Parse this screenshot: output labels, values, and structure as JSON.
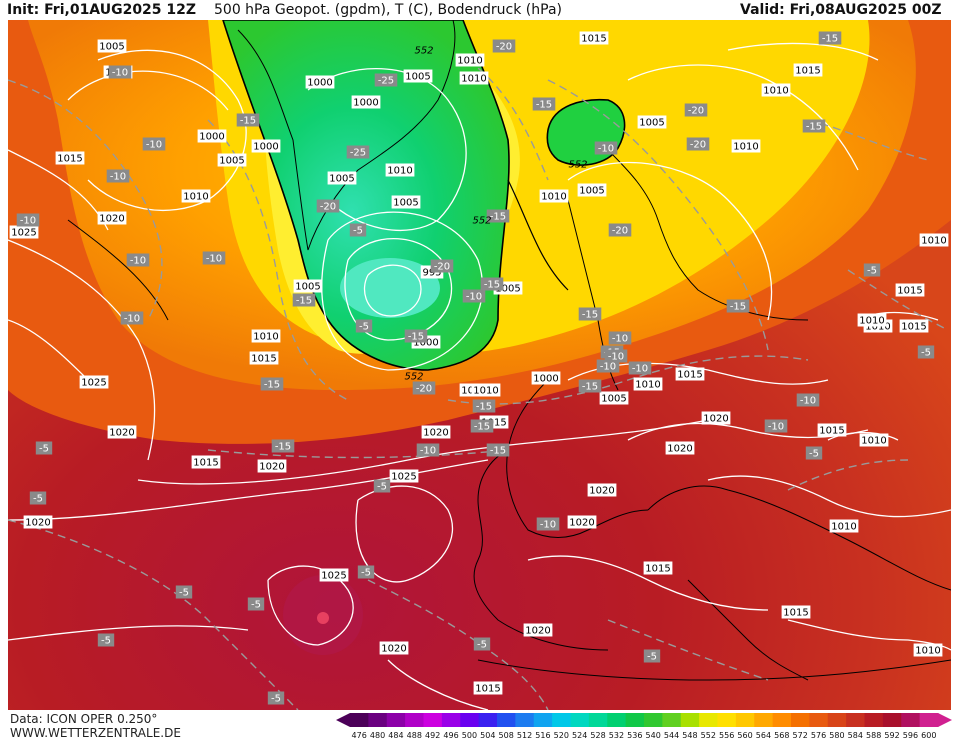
{
  "header": {
    "init": "Init: Fri,01AUG2025 12Z",
    "title": "500 hPa Geopot. (gpdm), T (C), Bodendruck (hPa)",
    "valid": "Valid: Fri,08AUG2025 00Z"
  },
  "footer": {
    "data_source": "Data: ICON OPER 0.250°",
    "website": "WWW.WETTERZENTRALE.DE"
  },
  "colorbar": {
    "values": [
      "476",
      "480",
      "484",
      "488",
      "492",
      "496",
      "500",
      "504",
      "508",
      "512",
      "516",
      "520",
      "524",
      "528",
      "532",
      "536",
      "540",
      "544",
      "548",
      "552",
      "556",
      "560",
      "564",
      "568",
      "572",
      "576",
      "580",
      "584",
      "588",
      "592",
      "596",
      "600"
    ],
    "colors": [
      "#4b0058",
      "#6a0080",
      "#8c00a8",
      "#b000c8",
      "#cc00e0",
      "#9a00e8",
      "#6a00f0",
      "#3a20f0",
      "#2050f0",
      "#1c7cf0",
      "#10a4f0",
      "#00c8e8",
      "#00d8c0",
      "#00d898",
      "#00d070",
      "#10c848",
      "#30c830",
      "#60d020",
      "#a8e000",
      "#e8e800",
      "#ffe000",
      "#ffc800",
      "#ffa800",
      "#ff8c00",
      "#f47000",
      "#e85a10",
      "#d84418",
      "#c83020",
      "#b81c24",
      "#a8102c",
      "#b01060",
      "#d02090"
    ]
  },
  "pressure_labels": [
    {
      "text": "1005"
    },
    {
      "text": "1005"
    },
    {
      "text": "1000"
    },
    {
      "text": "1005"
    },
    {
      "text": "1000"
    },
    {
      "text": "1005"
    },
    {
      "text": "1010"
    },
    {
      "text": "1005"
    },
    {
      "text": "1015"
    },
    {
      "text": "1000"
    },
    {
      "text": "1005"
    },
    {
      "text": "1000"
    },
    {
      "text": "1015"
    },
    {
      "text": "1010"
    },
    {
      "text": "1020"
    },
    {
      "text": "1025"
    },
    {
      "text": "1010"
    },
    {
      "text": "1005"
    },
    {
      "text": "995"
    },
    {
      "text": "1000"
    },
    {
      "text": "1010"
    },
    {
      "text": "1015"
    },
    {
      "text": "1025"
    },
    {
      "text": "1020"
    },
    {
      "text": "1020"
    },
    {
      "text": "1015"
    },
    {
      "text": "1020"
    },
    {
      "text": "1025"
    },
    {
      "text": "1020"
    },
    {
      "text": "1025"
    },
    {
      "text": "1020"
    },
    {
      "text": "1020"
    },
    {
      "text": "1010"
    },
    {
      "text": "1015"
    },
    {
      "text": "1010"
    },
    {
      "text": "1005"
    },
    {
      "text": "1000"
    },
    {
      "text": "1010"
    },
    {
      "text": "1005"
    },
    {
      "text": "1010"
    },
    {
      "text": "1005"
    },
    {
      "text": "1010"
    },
    {
      "text": "1005"
    },
    {
      "text": "1015"
    },
    {
      "text": "1010"
    },
    {
      "text": "1010"
    },
    {
      "text": "1015"
    },
    {
      "text": "1020"
    },
    {
      "text": "1020"
    },
    {
      "text": "1020"
    },
    {
      "text": "1020"
    },
    {
      "text": "1015"
    },
    {
      "text": "1010"
    },
    {
      "text": "1015"
    },
    {
      "text": "1010"
    },
    {
      "text": "1010"
    },
    {
      "text": "1015"
    },
    {
      "text": "1015"
    },
    {
      "text": "1010"
    },
    {
      "text": "1010"
    },
    {
      "text": "1015"
    },
    {
      "text": "1010"
    },
    {
      "text": "1015"
    }
  ],
  "temperature_labels": [
    {
      "text": "-10"
    },
    {
      "text": "-10"
    },
    {
      "text": "-15"
    },
    {
      "text": "-10"
    },
    {
      "text": "-10"
    },
    {
      "text": "-10"
    },
    {
      "text": "-10"
    },
    {
      "text": "-10"
    },
    {
      "text": "-15"
    },
    {
      "text": "-25"
    },
    {
      "text": "-25"
    },
    {
      "text": "-20"
    },
    {
      "text": "-20"
    },
    {
      "text": "-15"
    },
    {
      "text": "-15"
    },
    {
      "text": "-20"
    },
    {
      "text": "-20"
    },
    {
      "text": "-15"
    },
    {
      "text": "-20"
    },
    {
      "text": "-20"
    },
    {
      "text": "-15"
    },
    {
      "text": "-15"
    },
    {
      "text": "-20"
    },
    {
      "text": "-15"
    },
    {
      "text": "-15"
    },
    {
      "text": "-15"
    },
    {
      "text": "-10"
    },
    {
      "text": "-10"
    },
    {
      "text": "-10"
    },
    {
      "text": "-15"
    },
    {
      "text": "-15"
    },
    {
      "text": "-10"
    },
    {
      "text": "-10"
    },
    {
      "text": "-15"
    },
    {
      "text": "-15"
    },
    {
      "text": "-15"
    },
    {
      "text": "-10"
    },
    {
      "text": "-5"
    },
    {
      "text": "-5"
    },
    {
      "text": "-5"
    },
    {
      "text": "-5"
    },
    {
      "text": "-5"
    },
    {
      "text": "-5"
    },
    {
      "text": "-5"
    },
    {
      "text": "-5"
    },
    {
      "text": "-5"
    },
    {
      "text": "-5"
    },
    {
      "text": "-5"
    },
    {
      "text": "-5"
    },
    {
      "text": "-10"
    },
    {
      "text": "-5"
    },
    {
      "text": "-10"
    },
    {
      "text": "-10"
    },
    {
      "text": "-10"
    },
    {
      "text": "-5"
    },
    {
      "text": "-5"
    },
    {
      "text": "-15"
    },
    {
      "text": "-15"
    }
  ],
  "geopotential_labels": [
    {
      "text": "552"
    },
    {
      "text": "552"
    },
    {
      "text": "552"
    },
    {
      "text": "552"
    }
  ]
}
